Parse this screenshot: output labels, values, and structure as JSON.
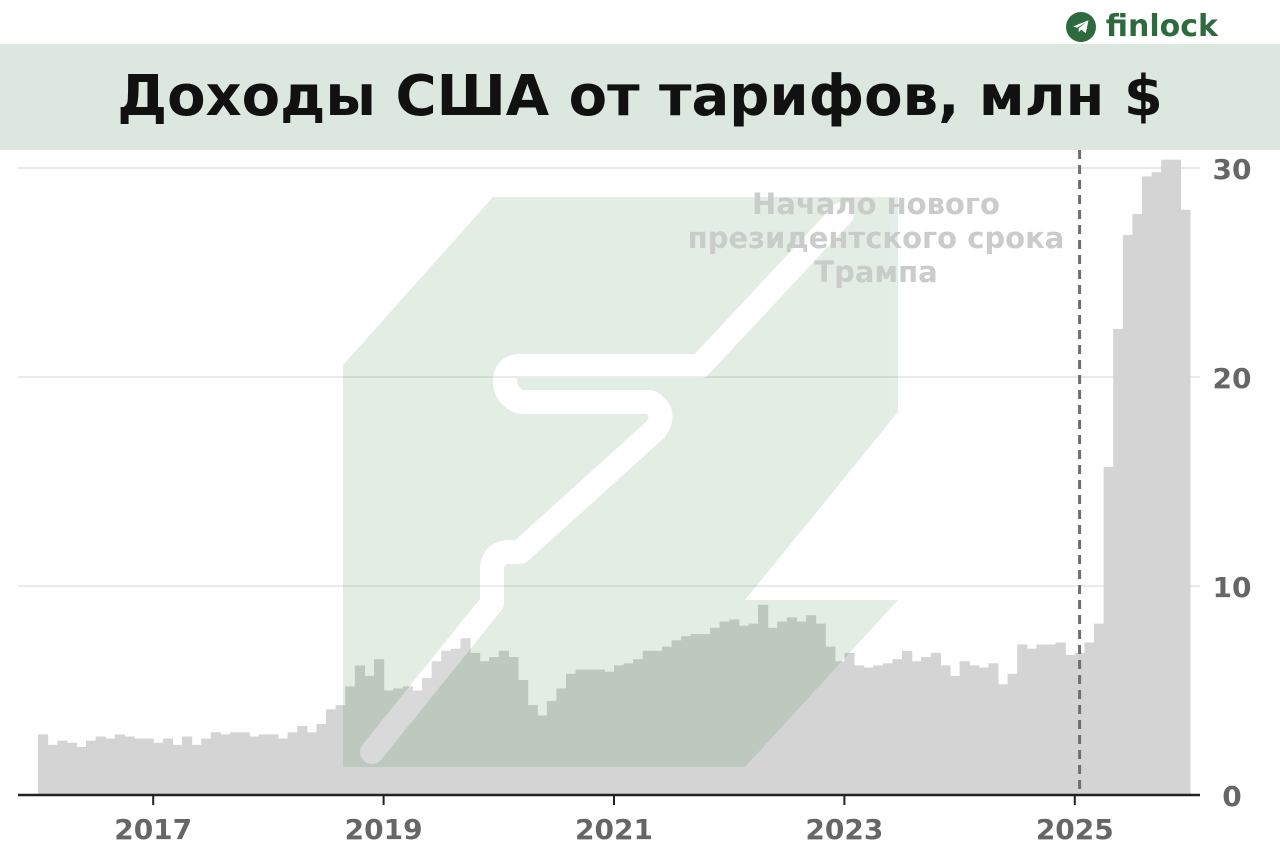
{
  "brand": {
    "name": "finlock",
    "icon": "telegram-icon",
    "color": "#2d6a3e"
  },
  "title": "Доходы США от тарифов, млн $",
  "colors": {
    "bars": "#d4d4d4",
    "band": "#dce7df",
    "watermark": "#2d7a3a",
    "marker": "#6e6e6e"
  },
  "chart_data": {
    "type": "bar",
    "x_start": "2016-01",
    "frequency": "monthly",
    "x_ticks": [
      "2017",
      "2019",
      "2021",
      "2023",
      "2025"
    ],
    "y_ticks": [
      "0",
      "10",
      "20",
      "30"
    ],
    "ylim": [
      0,
      30
    ],
    "y_axis_position": "right",
    "grid": true,
    "values": [
      2.9,
      2.4,
      2.6,
      2.5,
      2.3,
      2.6,
      2.8,
      2.7,
      2.9,
      2.8,
      2.7,
      2.7,
      2.5,
      2.7,
      2.4,
      2.8,
      2.4,
      2.7,
      3.0,
      2.9,
      3.0,
      3.0,
      2.8,
      2.9,
      2.9,
      2.7,
      3.0,
      3.3,
      3.0,
      3.4,
      4.1,
      4.3,
      5.2,
      6.2,
      5.7,
      6.5,
      5.0,
      5.1,
      5.2,
      5.0,
      5.6,
      6.4,
      6.9,
      7.0,
      7.5,
      6.8,
      6.4,
      6.6,
      6.9,
      6.6,
      5.5,
      4.3,
      3.8,
      4.5,
      5.1,
      5.8,
      6.0,
      6.0,
      6.0,
      5.9,
      6.2,
      6.3,
      6.5,
      6.9,
      6.9,
      7.1,
      7.4,
      7.6,
      7.7,
      7.7,
      8.0,
      8.3,
      8.4,
      8.1,
      8.2,
      9.1,
      8.0,
      8.3,
      8.5,
      8.3,
      8.6,
      8.2,
      7.1,
      6.4,
      6.8,
      6.2,
      6.1,
      6.2,
      6.3,
      6.5,
      6.9,
      6.4,
      6.6,
      6.8,
      6.2,
      5.7,
      6.4,
      6.2,
      6.1,
      6.3,
      5.3,
      5.8,
      7.2,
      7.0,
      7.2,
      7.2,
      7.3,
      6.7,
      6.8,
      7.3,
      8.2,
      15.7,
      22.3,
      26.8,
      27.8,
      29.6,
      29.8,
      30.4,
      30.4,
      28.0
    ],
    "annotation": {
      "at": "2025-01",
      "text_lines": [
        "Начало нового",
        "президентского срока",
        "Трампа"
      ]
    }
  }
}
